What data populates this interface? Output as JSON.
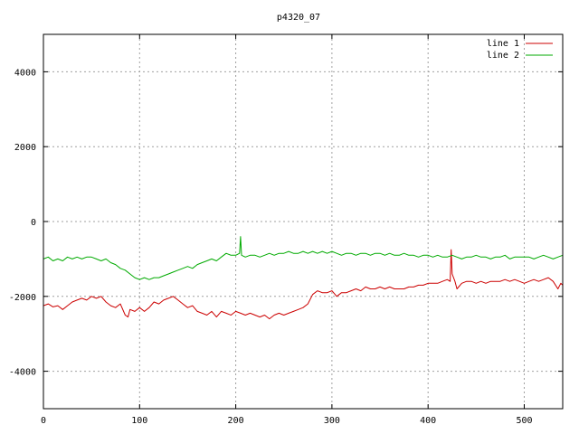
{
  "chart_data": {
    "type": "line",
    "title": "p4320_07",
    "xlabel": "",
    "ylabel": "",
    "xlim": [
      0,
      540
    ],
    "ylim": [
      -5000,
      5000
    ],
    "x_ticks": [
      0,
      100,
      200,
      300,
      400,
      500
    ],
    "y_ticks": [
      -4000,
      -2000,
      0,
      2000,
      4000
    ],
    "grid": true,
    "legend_position": "top-right",
    "series": [
      {
        "name": "line 1",
        "color": "#cc0000",
        "points": [
          [
            0,
            -2250
          ],
          [
            5,
            -2200
          ],
          [
            10,
            -2280
          ],
          [
            15,
            -2250
          ],
          [
            20,
            -2350
          ],
          [
            25,
            -2250
          ],
          [
            30,
            -2150
          ],
          [
            35,
            -2100
          ],
          [
            40,
            -2050
          ],
          [
            45,
            -2100
          ],
          [
            50,
            -2000
          ],
          [
            55,
            -2050
          ],
          [
            60,
            -2000
          ],
          [
            65,
            -2150
          ],
          [
            70,
            -2250
          ],
          [
            75,
            -2300
          ],
          [
            80,
            -2200
          ],
          [
            85,
            -2500
          ],
          [
            88,
            -2550
          ],
          [
            90,
            -2350
          ],
          [
            95,
            -2400
          ],
          [
            100,
            -2300
          ],
          [
            105,
            -2400
          ],
          [
            110,
            -2300
          ],
          [
            115,
            -2150
          ],
          [
            120,
            -2200
          ],
          [
            125,
            -2100
          ],
          [
            130,
            -2050
          ],
          [
            135,
            -2000
          ],
          [
            140,
            -2100
          ],
          [
            145,
            -2200
          ],
          [
            150,
            -2300
          ],
          [
            155,
            -2250
          ],
          [
            160,
            -2400
          ],
          [
            165,
            -2450
          ],
          [
            170,
            -2500
          ],
          [
            175,
            -2400
          ],
          [
            180,
            -2550
          ],
          [
            185,
            -2400
          ],
          [
            190,
            -2450
          ],
          [
            195,
            -2500
          ],
          [
            200,
            -2400
          ],
          [
            205,
            -2450
          ],
          [
            210,
            -2500
          ],
          [
            215,
            -2450
          ],
          [
            220,
            -2500
          ],
          [
            225,
            -2550
          ],
          [
            230,
            -2500
          ],
          [
            235,
            -2600
          ],
          [
            240,
            -2500
          ],
          [
            245,
            -2450
          ],
          [
            250,
            -2500
          ],
          [
            255,
            -2450
          ],
          [
            260,
            -2400
          ],
          [
            265,
            -2350
          ],
          [
            270,
            -2300
          ],
          [
            275,
            -2200
          ],
          [
            280,
            -1950
          ],
          [
            285,
            -1850
          ],
          [
            290,
            -1900
          ],
          [
            295,
            -1900
          ],
          [
            300,
            -1850
          ],
          [
            305,
            -2000
          ],
          [
            310,
            -1900
          ],
          [
            315,
            -1900
          ],
          [
            320,
            -1850
          ],
          [
            325,
            -1800
          ],
          [
            330,
            -1850
          ],
          [
            335,
            -1750
          ],
          [
            340,
            -1800
          ],
          [
            345,
            -1800
          ],
          [
            350,
            -1750
          ],
          [
            355,
            -1800
          ],
          [
            360,
            -1750
          ],
          [
            365,
            -1800
          ],
          [
            370,
            -1800
          ],
          [
            375,
            -1800
          ],
          [
            380,
            -1750
          ],
          [
            385,
            -1750
          ],
          [
            390,
            -1700
          ],
          [
            395,
            -1700
          ],
          [
            400,
            -1650
          ],
          [
            405,
            -1650
          ],
          [
            410,
            -1650
          ],
          [
            415,
            -1600
          ],
          [
            420,
            -1550
          ],
          [
            423,
            -1600
          ],
          [
            424,
            -750
          ],
          [
            425,
            -1400
          ],
          [
            428,
            -1600
          ],
          [
            430,
            -1800
          ],
          [
            435,
            -1650
          ],
          [
            440,
            -1600
          ],
          [
            445,
            -1600
          ],
          [
            450,
            -1650
          ],
          [
            455,
            -1600
          ],
          [
            460,
            -1650
          ],
          [
            465,
            -1600
          ],
          [
            470,
            -1600
          ],
          [
            475,
            -1600
          ],
          [
            480,
            -1550
          ],
          [
            485,
            -1600
          ],
          [
            490,
            -1550
          ],
          [
            495,
            -1600
          ],
          [
            500,
            -1650
          ],
          [
            505,
            -1600
          ],
          [
            510,
            -1550
          ],
          [
            515,
            -1600
          ],
          [
            520,
            -1550
          ],
          [
            525,
            -1500
          ],
          [
            530,
            -1600
          ],
          [
            535,
            -1800
          ],
          [
            538,
            -1650
          ],
          [
            540,
            -1700
          ]
        ]
      },
      {
        "name": "line 2",
        "color": "#00aa00",
        "points": [
          [
            0,
            -1000
          ],
          [
            5,
            -950
          ],
          [
            10,
            -1050
          ],
          [
            15,
            -1000
          ],
          [
            20,
            -1050
          ],
          [
            25,
            -950
          ],
          [
            30,
            -1000
          ],
          [
            35,
            -950
          ],
          [
            40,
            -1000
          ],
          [
            45,
            -950
          ],
          [
            50,
            -950
          ],
          [
            55,
            -1000
          ],
          [
            60,
            -1050
          ],
          [
            65,
            -1000
          ],
          [
            70,
            -1100
          ],
          [
            75,
            -1150
          ],
          [
            80,
            -1250
          ],
          [
            85,
            -1300
          ],
          [
            90,
            -1400
          ],
          [
            95,
            -1500
          ],
          [
            100,
            -1550
          ],
          [
            105,
            -1500
          ],
          [
            110,
            -1550
          ],
          [
            115,
            -1500
          ],
          [
            120,
            -1500
          ],
          [
            125,
            -1450
          ],
          [
            130,
            -1400
          ],
          [
            135,
            -1350
          ],
          [
            140,
            -1300
          ],
          [
            145,
            -1250
          ],
          [
            150,
            -1200
          ],
          [
            155,
            -1250
          ],
          [
            160,
            -1150
          ],
          [
            165,
            -1100
          ],
          [
            170,
            -1050
          ],
          [
            175,
            -1000
          ],
          [
            180,
            -1050
          ],
          [
            185,
            -950
          ],
          [
            190,
            -850
          ],
          [
            195,
            -900
          ],
          [
            200,
            -900
          ],
          [
            204,
            -850
          ],
          [
            205,
            -400
          ],
          [
            206,
            -900
          ],
          [
            210,
            -950
          ],
          [
            215,
            -900
          ],
          [
            220,
            -900
          ],
          [
            225,
            -950
          ],
          [
            230,
            -900
          ],
          [
            235,
            -850
          ],
          [
            240,
            -900
          ],
          [
            245,
            -850
          ],
          [
            250,
            -850
          ],
          [
            255,
            -800
          ],
          [
            260,
            -850
          ],
          [
            265,
            -850
          ],
          [
            270,
            -800
          ],
          [
            275,
            -850
          ],
          [
            280,
            -800
          ],
          [
            285,
            -850
          ],
          [
            290,
            -800
          ],
          [
            295,
            -850
          ],
          [
            300,
            -800
          ],
          [
            305,
            -850
          ],
          [
            310,
            -900
          ],
          [
            315,
            -850
          ],
          [
            320,
            -850
          ],
          [
            325,
            -900
          ],
          [
            330,
            -850
          ],
          [
            335,
            -850
          ],
          [
            340,
            -900
          ],
          [
            345,
            -850
          ],
          [
            350,
            -850
          ],
          [
            355,
            -900
          ],
          [
            360,
            -850
          ],
          [
            365,
            -900
          ],
          [
            370,
            -900
          ],
          [
            375,
            -850
          ],
          [
            380,
            -900
          ],
          [
            385,
            -900
          ],
          [
            390,
            -950
          ],
          [
            395,
            -900
          ],
          [
            400,
            -900
          ],
          [
            405,
            -950
          ],
          [
            410,
            -900
          ],
          [
            415,
            -950
          ],
          [
            420,
            -950
          ],
          [
            425,
            -900
          ],
          [
            430,
            -950
          ],
          [
            435,
            -1000
          ],
          [
            440,
            -950
          ],
          [
            445,
            -950
          ],
          [
            450,
            -900
          ],
          [
            455,
            -950
          ],
          [
            460,
            -950
          ],
          [
            465,
            -1000
          ],
          [
            470,
            -950
          ],
          [
            475,
            -950
          ],
          [
            480,
            -900
          ],
          [
            485,
            -1000
          ],
          [
            490,
            -950
          ],
          [
            495,
            -950
          ],
          [
            500,
            -950
          ],
          [
            505,
            -950
          ],
          [
            510,
            -1000
          ],
          [
            515,
            -950
          ],
          [
            520,
            -900
          ],
          [
            525,
            -950
          ],
          [
            530,
            -1000
          ],
          [
            535,
            -950
          ],
          [
            540,
            -900
          ]
        ]
      }
    ]
  }
}
